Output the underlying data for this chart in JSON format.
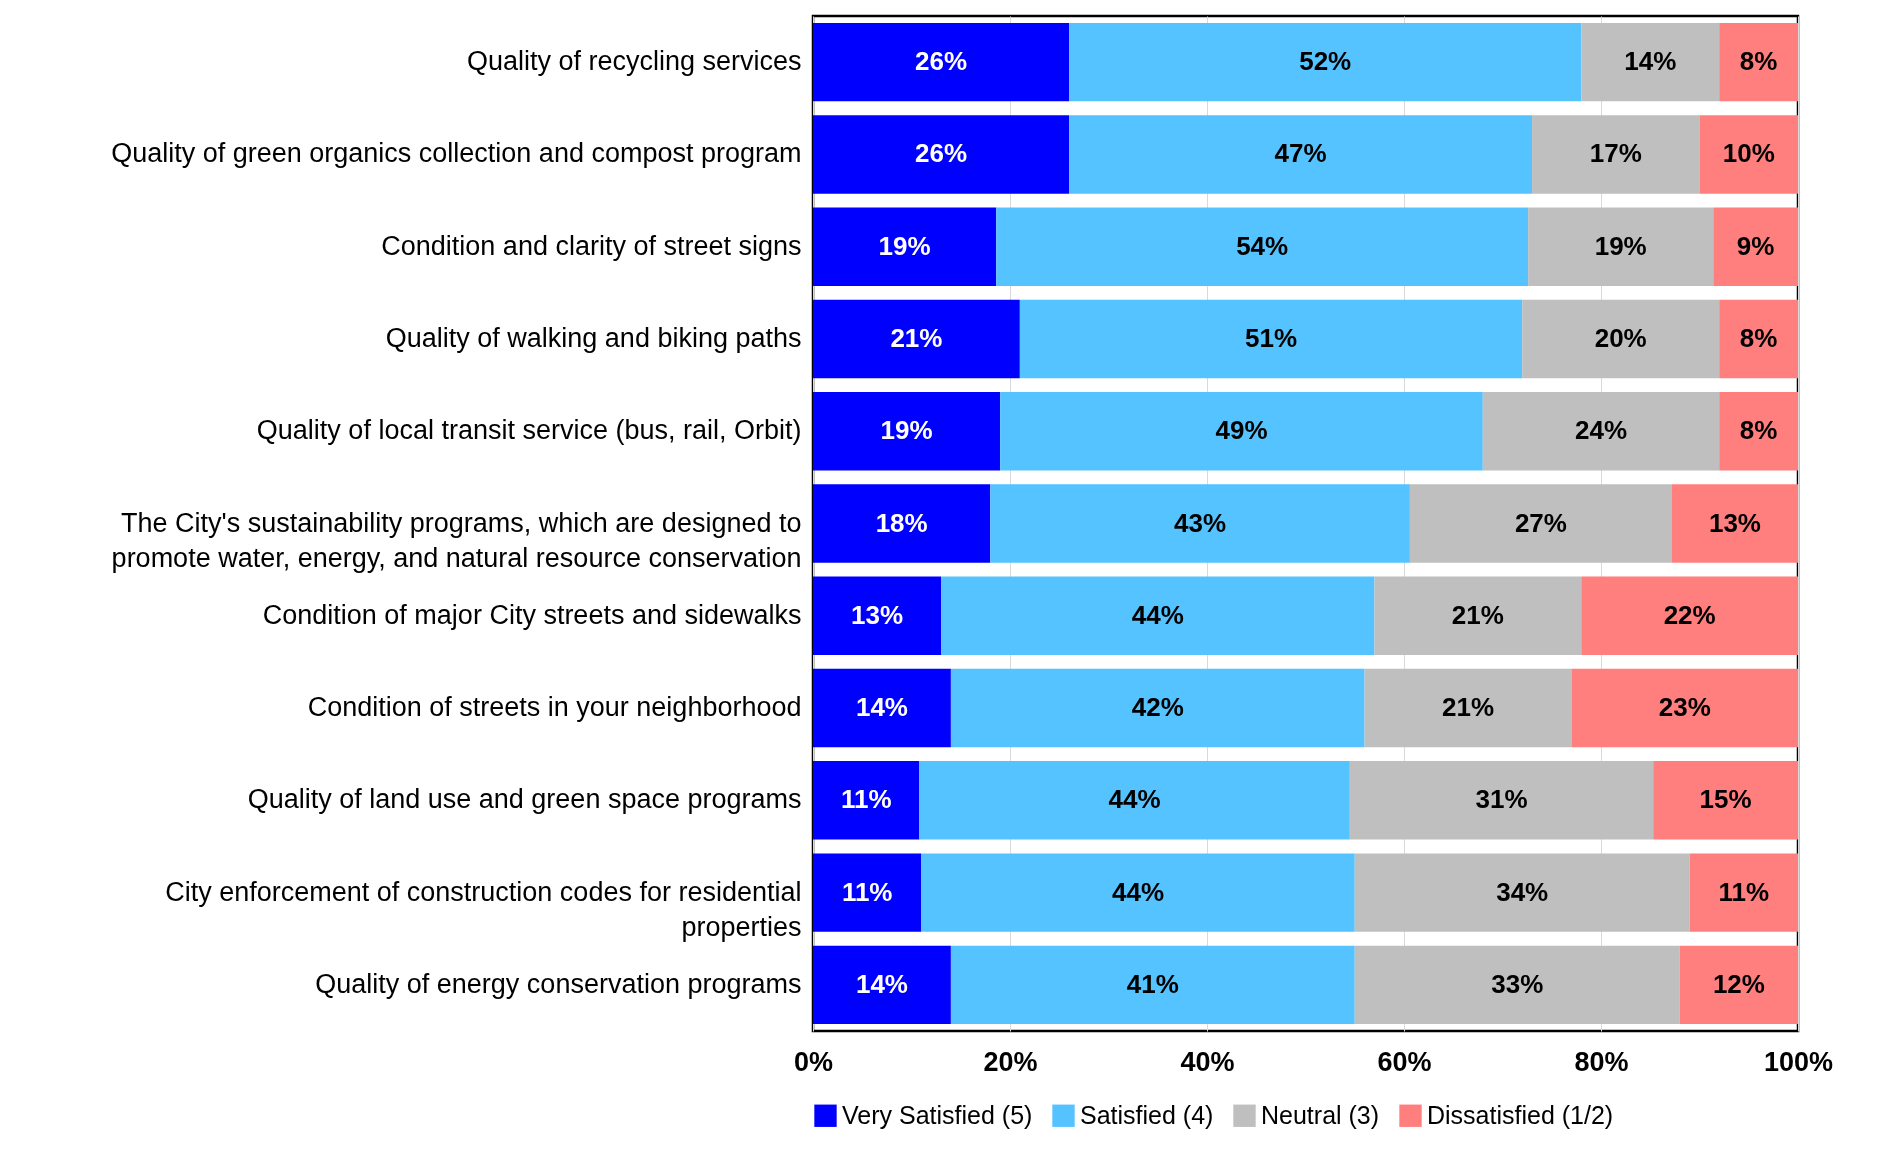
{
  "chart_data": {
    "type": "bar",
    "orientation": "horizontal",
    "stacked": true,
    "categories": [
      "Quality of recycling services",
      "Quality of green organics collection and compost program",
      "Condition and clarity of street signs",
      "Quality of walking and biking paths",
      "Quality of local transit service (bus, rail, Orbit)",
      "The City's sustainability programs, which are designed to promote water, energy, and natural resource conservation",
      "Condition of major City streets and sidewalks",
      "Condition of streets in your neighborhood",
      "Quality of land use and green space programs",
      "City enforcement of construction codes for residential properties",
      "Quality of energy conservation programs"
    ],
    "series": [
      {
        "name": "Very Satisfied (5)",
        "color": "#0000ff",
        "values": [
          26,
          26,
          18.6,
          21,
          19,
          18,
          13,
          14,
          10.8,
          11,
          14
        ],
        "value_labels": [
          "26%",
          "26%",
          "19%",
          "21%",
          "19%",
          "18%",
          "13%",
          "14%",
          "11%",
          "11%",
          "14%"
        ]
      },
      {
        "name": "Satisfied (4)",
        "color": "#55c3ff",
        "values": [
          52,
          47,
          54,
          51,
          49,
          42.6,
          44,
          42,
          43.7,
          44,
          41
        ],
        "value_labels": [
          "52%",
          "47%",
          "54%",
          "51%",
          "49%",
          "43%",
          "44%",
          "42%",
          "44%",
          "44%",
          "41%"
        ]
      },
      {
        "name": "Neutral (3)",
        "color": "#bfbfbf",
        "values": [
          14,
          17,
          18.8,
          20,
          24,
          26.6,
          21,
          21,
          30.8,
          34,
          33
        ],
        "value_labels": [
          "14%",
          "17%",
          "19%",
          "20%",
          "24%",
          "27%",
          "21%",
          "21%",
          "31%",
          "34%",
          "33%"
        ]
      },
      {
        "name": "Dissatisfied (1/2)",
        "color": "#ff7f7f",
        "values": [
          8,
          10,
          8.6,
          8,
          8,
          12.8,
          22,
          23,
          14.7,
          11,
          12
        ],
        "value_labels": [
          "8%",
          "10%",
          "9%",
          "8%",
          "8%",
          "13%",
          "22%",
          "23%",
          "15%",
          "11%",
          "12%"
        ]
      }
    ],
    "xlim": [
      0,
      100
    ],
    "xticks": [
      {
        "value": 0,
        "label": "0%"
      },
      {
        "value": 20,
        "label": "20%"
      },
      {
        "value": 40,
        "label": "40%"
      },
      {
        "value": 60,
        "label": "60%"
      },
      {
        "value": 80,
        "label": "80%"
      },
      {
        "value": 100,
        "label": "100%"
      }
    ],
    "grid": "x",
    "legend": "bottom"
  }
}
